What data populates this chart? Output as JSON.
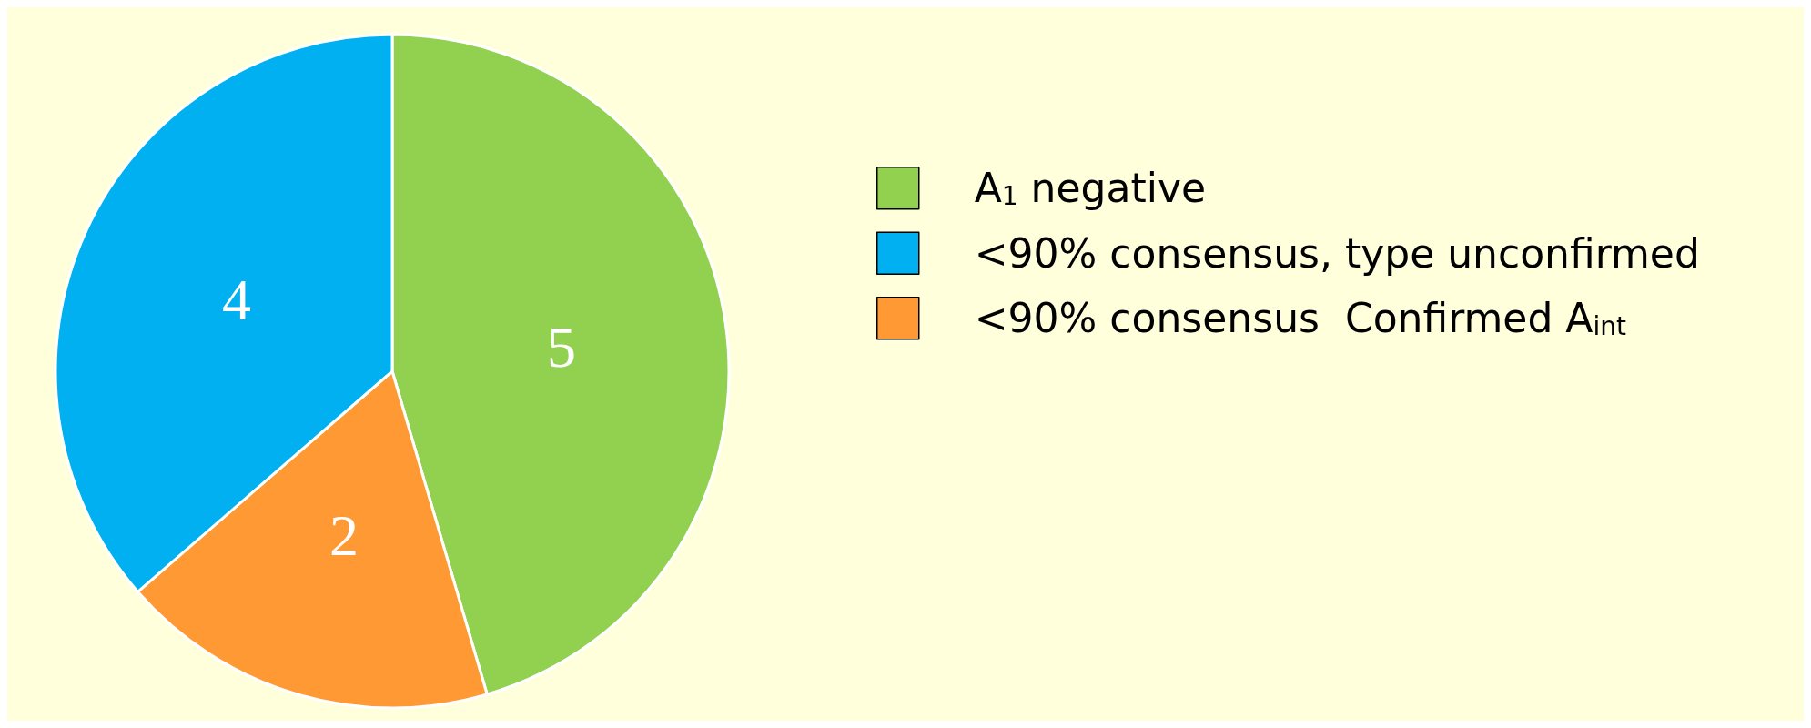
{
  "chart_data": {
    "type": "pie",
    "categories": [
      "A$_{1}$ negative",
      "<90% consensus, type unconfirmed",
      "<90% consensus  Confirmed A$_{int}$"
    ],
    "values": [
      5,
      4,
      2
    ],
    "colors": [
      "#92d050",
      "#00b0f0",
      "#ff9933"
    ],
    "data_labels": true,
    "legend": "right"
  }
}
